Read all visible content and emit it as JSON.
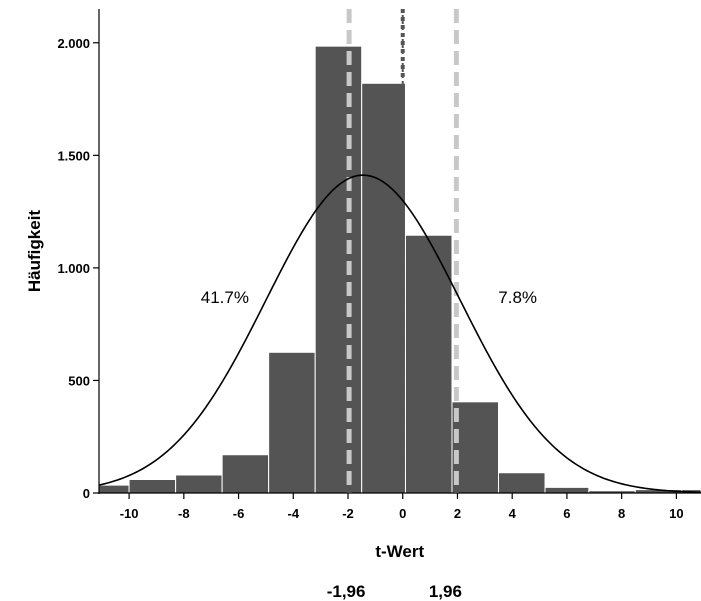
{
  "chart_data": {
    "type": "bar",
    "subtype": "histogram",
    "xlabel": "t-Wert",
    "ylabel": "Häufigkeit",
    "xlim": [
      -11.1,
      10.9
    ],
    "ylim": [
      0,
      2150
    ],
    "x_ticks": [
      {
        "value": -10,
        "label": "-10"
      },
      {
        "value": -8,
        "label": "-8"
      },
      {
        "value": -6,
        "label": "-6"
      },
      {
        "value": -4,
        "label": "-4"
      },
      {
        "value": -2,
        "label": "-2"
      },
      {
        "value": 0,
        "label": "0"
      },
      {
        "value": 2,
        "label": "2"
      },
      {
        "value": 4,
        "label": "4"
      },
      {
        "value": 6,
        "label": "6"
      },
      {
        "value": 8,
        "label": "8"
      },
      {
        "value": 10,
        "label": "10"
      }
    ],
    "y_ticks": [
      {
        "value": 0,
        "label": "0"
      },
      {
        "value": 500,
        "label": "500"
      },
      {
        "value": 1000,
        "label": "1.000"
      },
      {
        "value": 1500,
        "label": "1.500"
      },
      {
        "value": 2000,
        "label": "2.000"
      }
    ],
    "bins": [
      {
        "start": -11.1,
        "end": -10.0,
        "value": 35
      },
      {
        "start": -10.0,
        "end": -8.3,
        "value": 60
      },
      {
        "start": -8.3,
        "end": -6.6,
        "value": 80
      },
      {
        "start": -6.6,
        "end": -4.9,
        "value": 170
      },
      {
        "start": -4.9,
        "end": -3.2,
        "value": 625
      },
      {
        "start": -3.2,
        "end": -1.5,
        "value": 1985
      },
      {
        "start": -1.5,
        "end": 0.1,
        "value": 1820
      },
      {
        "start": 0.1,
        "end": 1.8,
        "value": 1145
      },
      {
        "start": 1.8,
        "end": 3.5,
        "value": 405
      },
      {
        "start": 3.5,
        "end": 5.2,
        "value": 90
      },
      {
        "start": 5.2,
        "end": 6.8,
        "value": 25
      },
      {
        "start": 6.8,
        "end": 8.5,
        "value": 10
      },
      {
        "start": 8.5,
        "end": 10.2,
        "value": 15
      },
      {
        "start": 10.2,
        "end": 10.9,
        "value": 15
      }
    ],
    "normal_curve": {
      "mean": -1.45,
      "sd": 3.55,
      "peak": 1412
    },
    "reference_lines": [
      {
        "x": -1.96,
        "style": "dashed",
        "color": "#c8c8c8"
      },
      {
        "x": 1.96,
        "style": "dashed",
        "color": "#c8c8c8"
      },
      {
        "x": 0,
        "style": "dotted",
        "color": "#555555"
      }
    ],
    "annotations": [
      {
        "text": "41.7%",
        "x": -6.5,
        "y": 845
      },
      {
        "text": "7.8%",
        "x": 4.2,
        "y": 845
      }
    ],
    "critical_value_labels": [
      {
        "text": "-1,96",
        "x": -1.96
      },
      {
        "text": "1,96",
        "x": 1.96
      }
    ],
    "colors": {
      "bar_fill": "#545454",
      "bar_stroke": "#ffffff",
      "curve": "#000000",
      "crit_line": "#c8c8c8",
      "zero_line": "#555555"
    }
  }
}
